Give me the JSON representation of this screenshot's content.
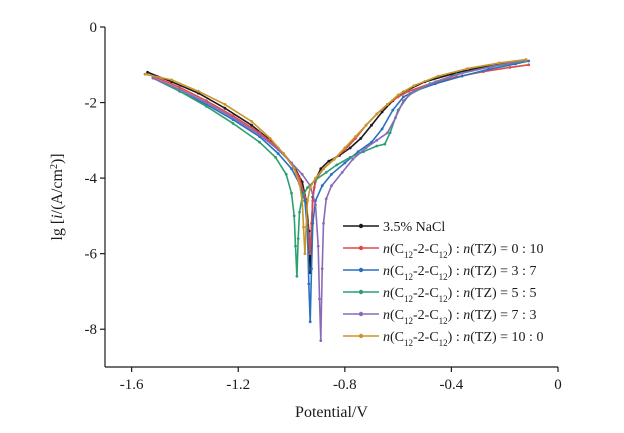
{
  "chart_data": {
    "type": "line",
    "title": "",
    "xlabel": "Potential/V",
    "ylabel_prefix": "lg [",
    "ylabel_italic": "i",
    "ylabel_rest": "/(A/cm",
    "ylabel_sup": "2",
    "ylabel_suffix": ")]",
    "xlim": [
      -1.7,
      0.0
    ],
    "ylim": [
      -9,
      0
    ],
    "x_ticks": [
      -1.6,
      -1.2,
      -0.8,
      -0.4,
      0
    ],
    "x_tick_labels": [
      "-1.6",
      "-1.2",
      "-0.8",
      "-0.4",
      "0"
    ],
    "y_ticks": [
      0,
      -2,
      -4,
      -6,
      -8
    ],
    "y_tick_labels": [
      "0",
      "-2",
      "-4",
      "-6",
      "-8"
    ],
    "grid": false,
    "legend_position": "bottom-right",
    "series": [
      {
        "name": "3.5% NaCl",
        "legend_parts": null,
        "color": "#1a1a1a",
        "x": [
          -1.54,
          -1.45,
          -1.35,
          -1.25,
          -1.15,
          -1.08,
          -1.03,
          -0.99,
          -0.96,
          -0.945,
          -0.935,
          -0.93,
          -0.925,
          -0.92,
          -0.91,
          -0.89,
          -0.86,
          -0.82,
          -0.78,
          -0.74,
          -0.7,
          -0.66,
          -0.62,
          -0.58,
          -0.5,
          -0.4,
          -0.3,
          -0.2,
          -0.12
        ],
        "y": [
          -1.2,
          -1.45,
          -1.75,
          -2.15,
          -2.6,
          -3.0,
          -3.35,
          -3.7,
          -4.1,
          -4.6,
          -5.4,
          -6.5,
          -5.4,
          -4.5,
          -4.05,
          -3.75,
          -3.55,
          -3.4,
          -3.2,
          -2.95,
          -2.6,
          -2.25,
          -1.95,
          -1.72,
          -1.45,
          -1.25,
          -1.08,
          -0.95,
          -0.88
        ]
      },
      {
        "name": "",
        "legend_parts": [
          "0",
          "10"
        ],
        "color": "#e04848",
        "x": [
          -1.52,
          -1.42,
          -1.32,
          -1.22,
          -1.12,
          -1.05,
          -1.0,
          -0.97,
          -0.95,
          -0.94,
          -0.93,
          -0.925,
          -0.92,
          -0.915,
          -0.905,
          -0.88,
          -0.84,
          -0.8,
          -0.76,
          -0.72,
          -0.68,
          -0.64,
          -0.6,
          -0.56,
          -0.48,
          -0.38,
          -0.28,
          -0.18,
          -0.11
        ],
        "y": [
          -1.3,
          -1.6,
          -1.95,
          -2.35,
          -2.8,
          -3.2,
          -3.6,
          -4.0,
          -4.5,
          -5.2,
          -6.0,
          -5.2,
          -4.6,
          -4.25,
          -4.0,
          -3.75,
          -3.5,
          -3.25,
          -2.95,
          -2.6,
          -2.3,
          -2.05,
          -1.85,
          -1.7,
          -1.5,
          -1.32,
          -1.18,
          -1.07,
          -1.0
        ]
      },
      {
        "name": "",
        "legend_parts": [
          "3",
          "7"
        ],
        "color": "#2a70c0",
        "x": [
          -1.52,
          -1.42,
          -1.32,
          -1.22,
          -1.12,
          -1.05,
          -1.0,
          -0.97,
          -0.95,
          -0.94,
          -0.935,
          -0.93,
          -0.925,
          -0.92,
          -0.91,
          -0.885,
          -0.85,
          -0.8,
          -0.75,
          -0.7,
          -0.66,
          -0.62,
          -0.58,
          -0.54,
          -0.46,
          -0.36,
          -0.26,
          -0.16,
          -0.11
        ],
        "y": [
          -1.35,
          -1.7,
          -2.05,
          -2.45,
          -2.9,
          -3.35,
          -3.75,
          -4.15,
          -4.6,
          -5.4,
          -6.8,
          -7.8,
          -6.4,
          -5.2,
          -4.6,
          -4.2,
          -3.9,
          -3.6,
          -3.3,
          -3.05,
          -2.7,
          -2.2,
          -1.85,
          -1.7,
          -1.5,
          -1.3,
          -1.12,
          -0.98,
          -0.9
        ]
      },
      {
        "name": "",
        "legend_parts": [
          "5",
          "5"
        ],
        "color": "#2aa070",
        "x": [
          -1.52,
          -1.42,
          -1.32,
          -1.22,
          -1.12,
          -1.06,
          -1.02,
          -1.0,
          -0.99,
          -0.985,
          -0.98,
          -0.975,
          -0.97,
          -0.96,
          -0.94,
          -0.91,
          -0.87,
          -0.83,
          -0.78,
          -0.73,
          -0.68,
          -0.65,
          -0.63,
          -0.6,
          -0.56,
          -0.48,
          -0.38,
          -0.25,
          -0.12
        ],
        "y": [
          -1.35,
          -1.7,
          -2.1,
          -2.55,
          -3.05,
          -3.45,
          -3.9,
          -4.4,
          -5.0,
          -5.8,
          -6.6,
          -5.6,
          -4.9,
          -4.5,
          -4.25,
          -4.05,
          -3.85,
          -3.65,
          -3.45,
          -3.3,
          -3.15,
          -3.1,
          -2.8,
          -2.2,
          -1.8,
          -1.5,
          -1.25,
          -1.05,
          -0.9
        ]
      },
      {
        "name": "",
        "legend_parts": [
          "7",
          "3"
        ],
        "color": "#8a6ab8",
        "x": [
          -1.52,
          -1.42,
          -1.32,
          -1.22,
          -1.12,
          -1.05,
          -1.0,
          -0.96,
          -0.93,
          -0.91,
          -0.9,
          -0.895,
          -0.89,
          -0.885,
          -0.88,
          -0.87,
          -0.85,
          -0.81,
          -0.77,
          -0.72,
          -0.68,
          -0.64,
          -0.61,
          -0.58,
          -0.54,
          -0.46,
          -0.36,
          -0.24,
          -0.12
        ],
        "y": [
          -1.35,
          -1.65,
          -2.0,
          -2.4,
          -2.85,
          -3.25,
          -3.6,
          -3.9,
          -4.2,
          -4.7,
          -5.8,
          -7.2,
          -8.3,
          -6.4,
          -5.2,
          -4.55,
          -4.2,
          -3.85,
          -3.5,
          -3.2,
          -3.0,
          -2.8,
          -2.4,
          -1.95,
          -1.7,
          -1.45,
          -1.22,
          -1.03,
          -0.88
        ]
      },
      {
        "name": "",
        "legend_parts": [
          "10",
          "0"
        ],
        "color": "#c8962a",
        "x": [
          -1.55,
          -1.45,
          -1.35,
          -1.25,
          -1.15,
          -1.08,
          -1.03,
          -0.99,
          -0.97,
          -0.96,
          -0.955,
          -0.95,
          -0.945,
          -0.94,
          -0.93,
          -0.91,
          -0.88,
          -0.84,
          -0.8,
          -0.76,
          -0.72,
          -0.68,
          -0.64,
          -0.6,
          -0.54,
          -0.45,
          -0.34,
          -0.22,
          -0.12
        ],
        "y": [
          -1.25,
          -1.4,
          -1.7,
          -2.05,
          -2.5,
          -2.95,
          -3.35,
          -3.75,
          -4.15,
          -4.6,
          -5.3,
          -6.0,
          -5.3,
          -4.6,
          -4.25,
          -4.0,
          -3.75,
          -3.5,
          -3.2,
          -2.9,
          -2.6,
          -2.3,
          -2.05,
          -1.8,
          -1.55,
          -1.3,
          -1.1,
          -0.95,
          -0.86
        ]
      }
    ],
    "legend_template": {
      "prefix_n": "n",
      "open": "(C",
      "sub1": "12",
      "mid": "-2-C",
      "sub2": "12",
      "close": ")",
      "colon": " : ",
      "tz": "(TZ)",
      "eq": " = ",
      "ratio_sep": " : "
    }
  }
}
